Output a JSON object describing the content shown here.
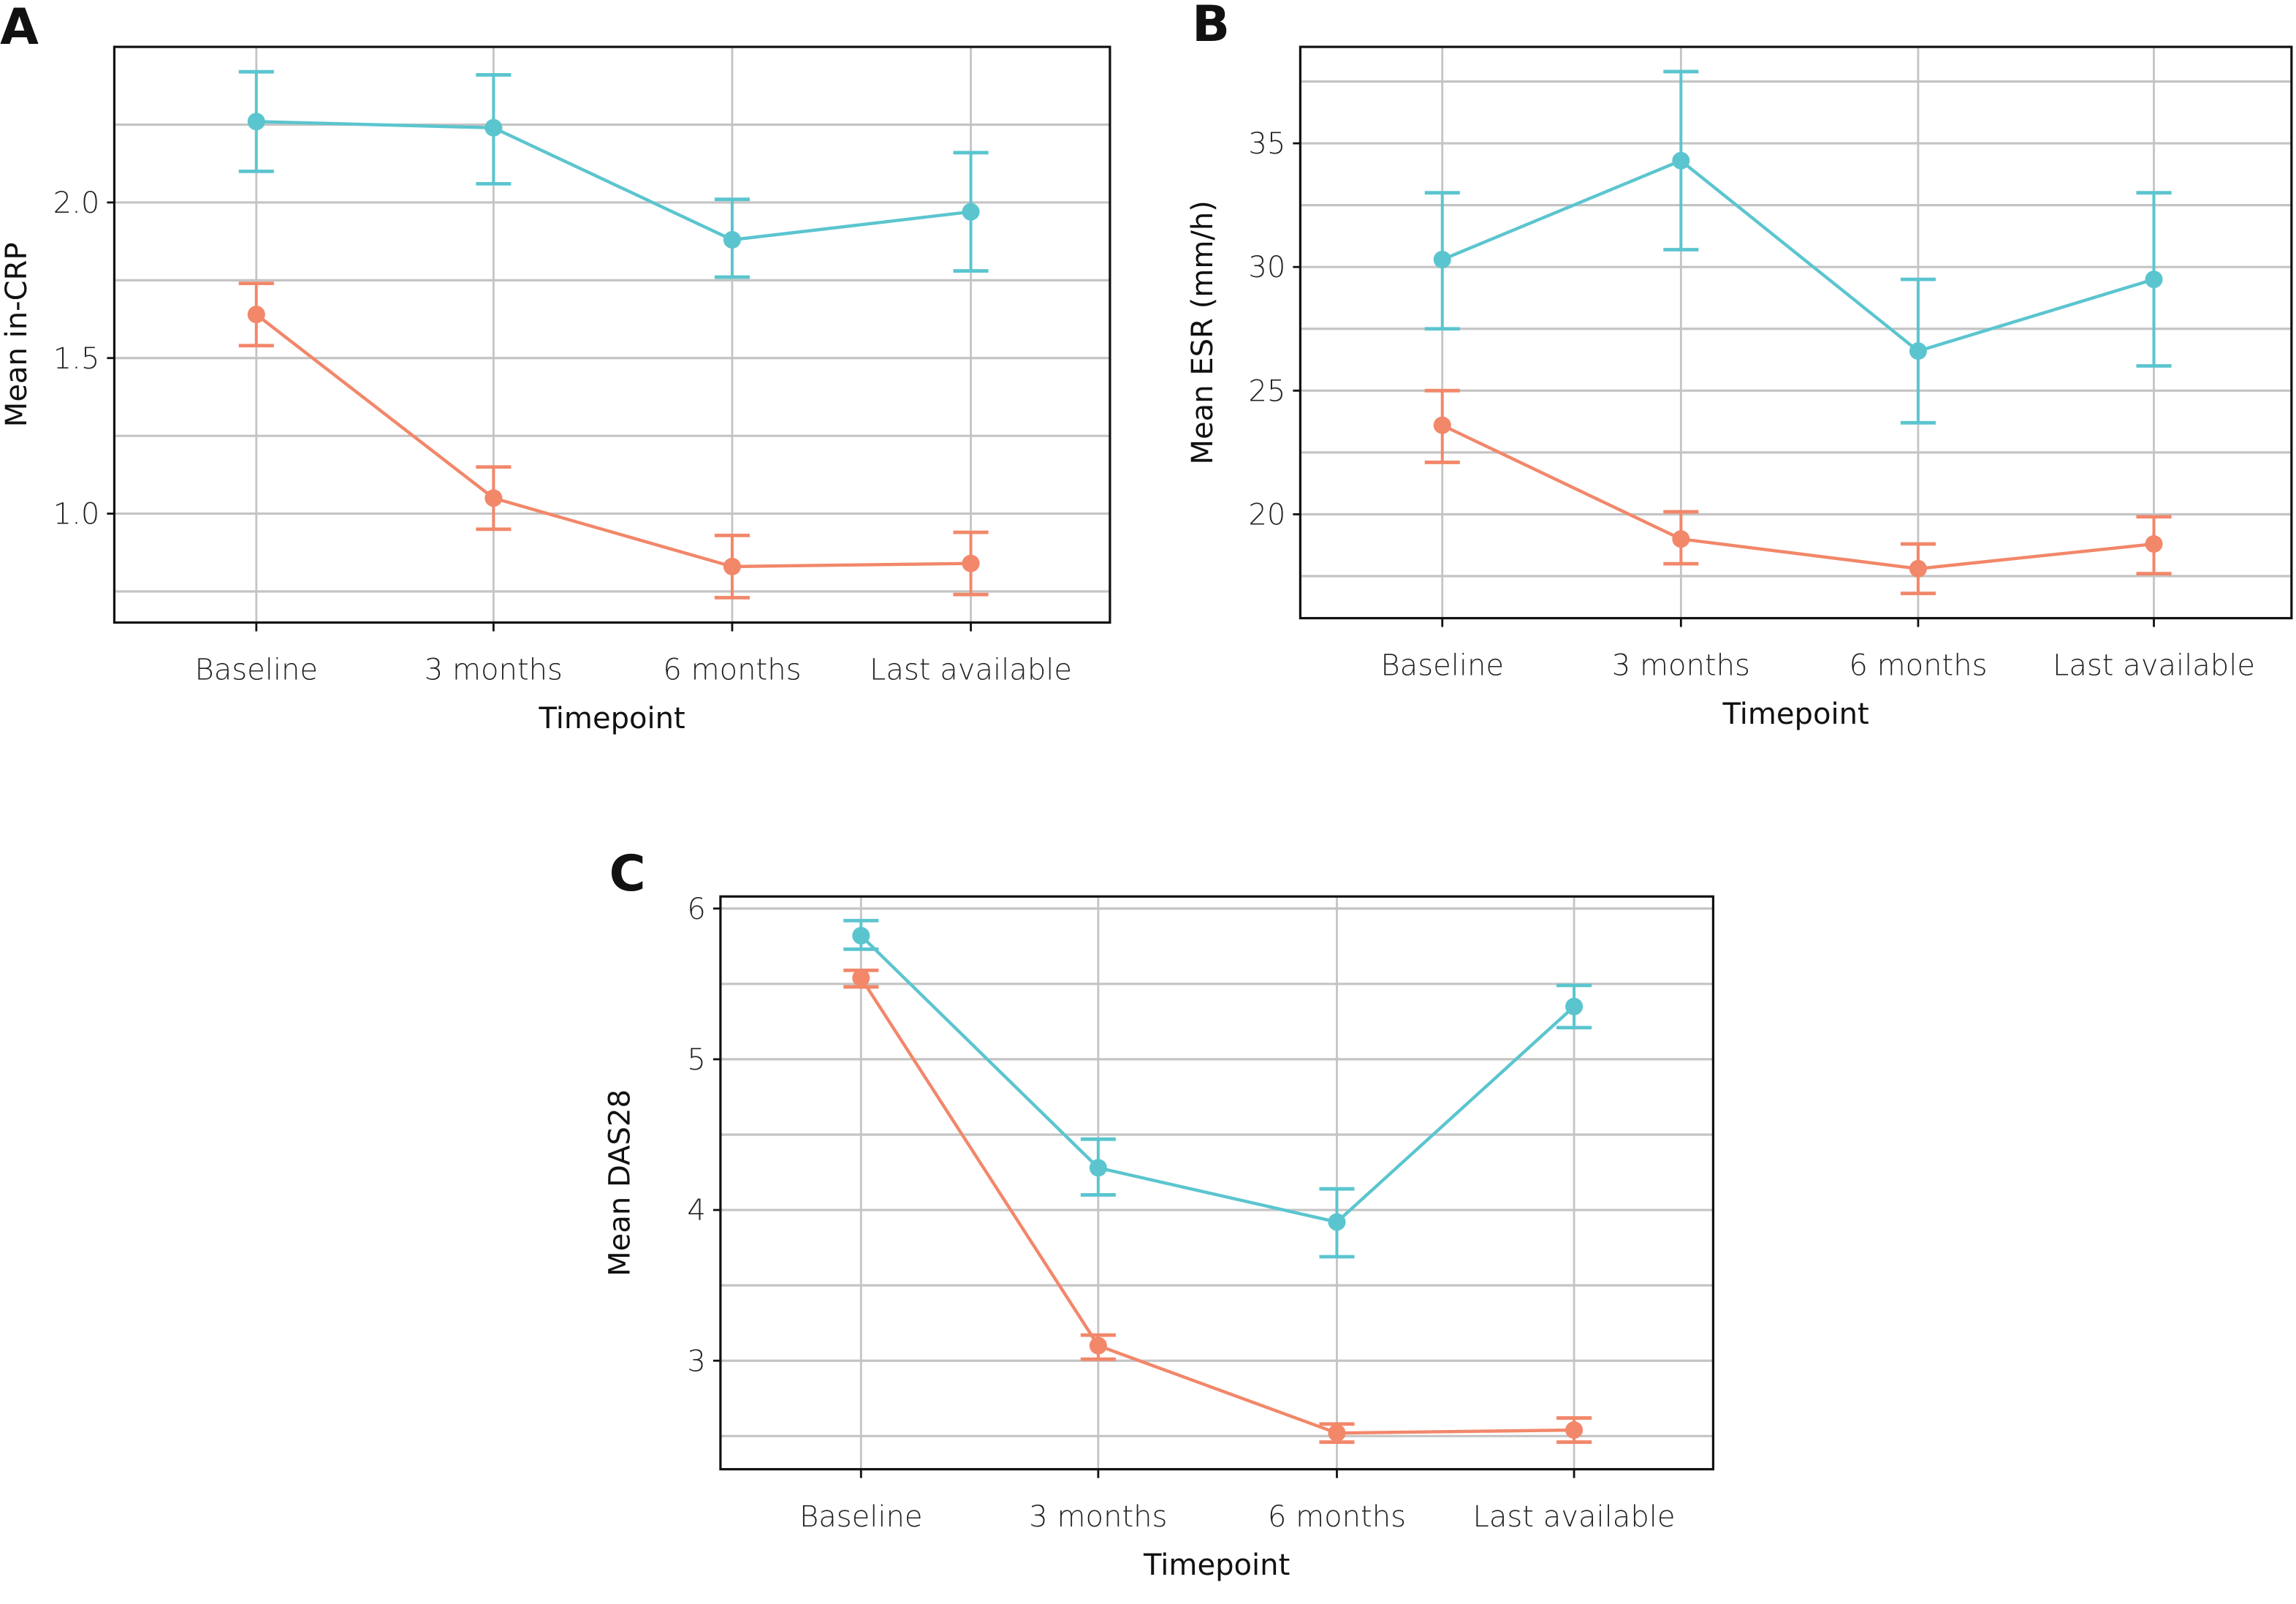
{
  "colors": {
    "series_1": "#5BC5CF",
    "series_2": "#F2876A",
    "grid": "#C4C4C4",
    "frame": "#111111"
  },
  "chart_data": [
    {
      "panel": "A",
      "type": "line",
      "error_bars": true,
      "grid": true,
      "xlabel": "Timepoint",
      "ylabel": "Mean in-CRP",
      "categories": [
        "Baseline",
        "3 months",
        "6 months",
        "Last available"
      ],
      "ylim": [
        0.65,
        2.5
      ],
      "yticks": [
        1.0,
        1.5,
        2.0
      ],
      "ytick_labels": [
        "1.0",
        "1.5",
        "2.0"
      ],
      "minor_grid": [
        0.75,
        1.25,
        1.75,
        2.25
      ],
      "series": [
        {
          "color": "#5BC5CF",
          "values": [
            2.26,
            2.24,
            1.88,
            1.97
          ],
          "lower": [
            2.1,
            2.06,
            1.76,
            1.78
          ],
          "upper": [
            2.42,
            2.41,
            2.01,
            2.16
          ]
        },
        {
          "color": "#F2876A",
          "values": [
            1.64,
            1.05,
            0.83,
            0.84
          ],
          "lower": [
            1.54,
            0.95,
            0.73,
            0.74
          ],
          "upper": [
            1.74,
            1.15,
            0.93,
            0.94
          ]
        }
      ]
    },
    {
      "panel": "B",
      "type": "line",
      "error_bars": true,
      "grid": true,
      "xlabel": "Timepoint",
      "ylabel": "Mean ESR (mm/h)",
      "categories": [
        "Baseline",
        "3 months",
        "6 months",
        "Last available"
      ],
      "ylim": [
        15.8,
        38.9
      ],
      "yticks": [
        20,
        25,
        30,
        35
      ],
      "ytick_labels": [
        "20",
        "25",
        "30",
        "35"
      ],
      "minor_grid": [
        17.5,
        22.5,
        27.5,
        32.5,
        37.5
      ],
      "series": [
        {
          "color": "#5BC5CF",
          "values": [
            30.3,
            34.3,
            26.6,
            29.5
          ],
          "lower": [
            27.5,
            30.7,
            23.7,
            26.0
          ],
          "upper": [
            33.0,
            37.9,
            29.5,
            33.0
          ]
        },
        {
          "color": "#F2876A",
          "values": [
            23.6,
            19.0,
            17.8,
            18.8
          ],
          "lower": [
            22.1,
            18.0,
            16.8,
            17.6
          ],
          "upper": [
            25.0,
            20.1,
            18.8,
            19.9
          ]
        }
      ]
    },
    {
      "panel": "C",
      "type": "line",
      "error_bars": true,
      "grid": true,
      "xlabel": "Timepoint",
      "ylabel": "Mean DAS28",
      "categories": [
        "Baseline",
        "3 months",
        "6 months",
        "Last available"
      ],
      "ylim": [
        2.28,
        6.08
      ],
      "yticks": [
        3,
        4,
        5,
        6
      ],
      "ytick_labels": [
        "3",
        "4",
        "5",
        "6"
      ],
      "minor_grid": [
        2.5,
        3.5,
        4.5,
        5.5
      ],
      "series": [
        {
          "color": "#5BC5CF",
          "values": [
            5.82,
            4.28,
            3.92,
            5.35
          ],
          "lower": [
            5.73,
            4.1,
            3.69,
            5.21
          ],
          "upper": [
            5.92,
            4.47,
            4.14,
            5.49
          ]
        },
        {
          "color": "#F2876A",
          "values": [
            5.54,
            3.1,
            2.52,
            2.54
          ],
          "lower": [
            5.48,
            3.01,
            2.46,
            2.46
          ],
          "upper": [
            5.59,
            3.17,
            2.58,
            2.62
          ]
        }
      ]
    }
  ]
}
